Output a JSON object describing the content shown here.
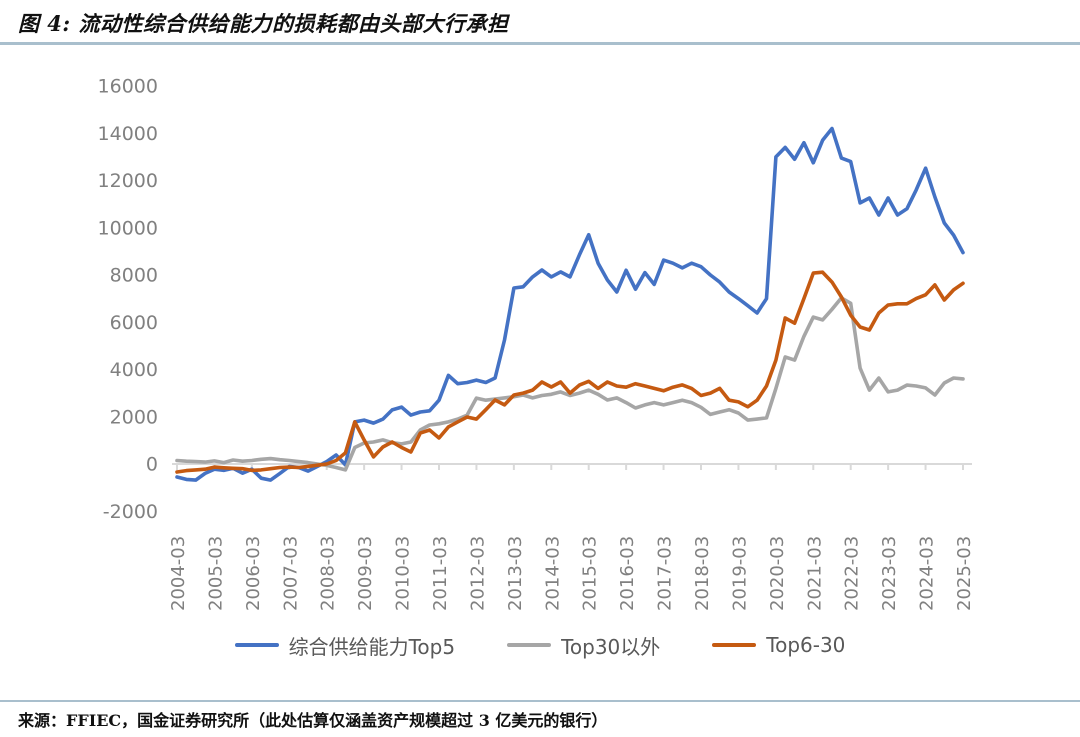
{
  "header": {
    "title": "图 4: 流动性综合供给能力的损耗都由头部大行承担"
  },
  "footer": {
    "source": "来源：FFIEC，国金证券研究所（此处估算仅涵盖资产规模超过 3 亿美元的银行）"
  },
  "colors": {
    "divider": "#a9bfcd",
    "axis_line": "#d9d9d9",
    "axis_label": "#808080",
    "legend_text": "#595959",
    "series_top5": "#4472c4",
    "series_top30plus": "#a6a6a6",
    "series_top6_30": "#c55a11"
  },
  "chart_data": {
    "type": "line",
    "title": "",
    "xlabel": "",
    "ylabel": "",
    "ylim": [
      -2000,
      16000
    ],
    "y_ticks": [
      16000,
      14000,
      12000,
      10000,
      8000,
      6000,
      4000,
      2000,
      0,
      -2000
    ],
    "x_tick_labels": [
      "2004-03",
      "2005-03",
      "2006-03",
      "2007-03",
      "2008-03",
      "2009-03",
      "2010-03",
      "2011-03",
      "2012-03",
      "2013-03",
      "2014-03",
      "2015-03",
      "2016-03",
      "2017-03",
      "2018-03",
      "2019-03",
      "2020-03",
      "2021-03",
      "2022-03",
      "2023-03",
      "2024-03",
      "2025-03"
    ],
    "grid": "zero-baseline-only",
    "legend_position": "bottom",
    "x": [
      "2004-03",
      "2004-06",
      "2004-09",
      "2004-12",
      "2005-03",
      "2005-06",
      "2005-09",
      "2005-12",
      "2006-03",
      "2006-06",
      "2006-09",
      "2006-12",
      "2007-03",
      "2007-06",
      "2007-09",
      "2007-12",
      "2008-03",
      "2008-06",
      "2008-09",
      "2008-12",
      "2009-03",
      "2009-06",
      "2009-09",
      "2009-12",
      "2010-03",
      "2010-06",
      "2010-09",
      "2010-12",
      "2011-03",
      "2011-06",
      "2011-09",
      "2011-12",
      "2012-03",
      "2012-06",
      "2012-09",
      "2012-12",
      "2013-03",
      "2013-06",
      "2013-09",
      "2013-12",
      "2014-03",
      "2014-06",
      "2014-09",
      "2014-12",
      "2015-03",
      "2015-06",
      "2015-09",
      "2015-12",
      "2016-03",
      "2016-06",
      "2016-09",
      "2016-12",
      "2017-03",
      "2017-06",
      "2017-09",
      "2017-12",
      "2018-03",
      "2018-06",
      "2018-09",
      "2018-12",
      "2019-03",
      "2019-06",
      "2019-09",
      "2019-12",
      "2020-03",
      "2020-06",
      "2020-09",
      "2020-12",
      "2021-03",
      "2021-06",
      "2021-09",
      "2021-12",
      "2022-03",
      "2022-06",
      "2022-09",
      "2022-12",
      "2023-03",
      "2023-06",
      "2023-09",
      "2023-12",
      "2024-03",
      "2024-06",
      "2024-09",
      "2024-12",
      "2025-03"
    ],
    "series": [
      {
        "name": "综合供给能力Top5",
        "color": "#4472c4",
        "values": [
          -550,
          -650,
          -680,
          -400,
          -220,
          -270,
          -180,
          -390,
          -220,
          -600,
          -680,
          -400,
          -100,
          -150,
          -300,
          -100,
          100,
          380,
          -40,
          1780,
          1860,
          1730,
          1900,
          2290,
          2410,
          2070,
          2200,
          2250,
          2700,
          3750,
          3400,
          3450,
          3550,
          3450,
          3640,
          5250,
          7450,
          7500,
          7920,
          8210,
          7920,
          8130,
          7920,
          8850,
          9700,
          8500,
          7790,
          7280,
          8200,
          7400,
          8100,
          7600,
          8630,
          8500,
          8300,
          8500,
          8350,
          8000,
          7700,
          7280,
          7000,
          6700,
          6390,
          7000,
          13000,
          13400,
          12900,
          13600,
          12750,
          13700,
          14200,
          12950,
          12800,
          11050,
          11260,
          10540,
          11260,
          10540,
          10800,
          11600,
          12520,
          11300,
          10200,
          9690,
          8950
        ]
      },
      {
        "name": "Top30以外",
        "color": "#a6a6a6",
        "values": [
          150,
          120,
          100,
          80,
          130,
          60,
          170,
          120,
          150,
          200,
          230,
          180,
          150,
          100,
          60,
          0,
          -60,
          -150,
          -250,
          700,
          890,
          930,
          1020,
          900,
          850,
          930,
          1440,
          1650,
          1700,
          1780,
          1900,
          2070,
          2790,
          2700,
          2750,
          2800,
          2850,
          2920,
          2800,
          2900,
          2950,
          3050,
          2900,
          3000,
          3130,
          2950,
          2710,
          2800,
          2600,
          2370,
          2500,
          2600,
          2500,
          2600,
          2700,
          2600,
          2400,
          2100,
          2200,
          2300,
          2160,
          1860,
          1900,
          1950,
          3200,
          4530,
          4400,
          5400,
          6220,
          6100,
          6550,
          7030,
          6800,
          4060,
          3130,
          3640,
          3050,
          3130,
          3340,
          3300,
          3220,
          2920,
          3430,
          3640,
          3600
        ]
      },
      {
        "name": "Top6-30",
        "color": "#c55a11",
        "values": [
          -340,
          -280,
          -250,
          -220,
          -130,
          -160,
          -180,
          -200,
          -270,
          -250,
          -200,
          -150,
          -130,
          -150,
          -100,
          -50,
          0,
          150,
          470,
          1780,
          1020,
          300,
          720,
          930,
          700,
          510,
          1310,
          1440,
          1100,
          1570,
          1780,
          1990,
          1900,
          2300,
          2710,
          2500,
          2920,
          3000,
          3130,
          3470,
          3260,
          3470,
          3000,
          3340,
          3500,
          3200,
          3470,
          3300,
          3250,
          3400,
          3300,
          3200,
          3100,
          3250,
          3350,
          3200,
          2900,
          3000,
          3200,
          2700,
          2630,
          2420,
          2700,
          3300,
          4400,
          6180,
          5960,
          7000,
          8080,
          8120,
          7700,
          7070,
          6300,
          5800,
          5670,
          6390,
          6730,
          6780,
          6780,
          7000,
          7160,
          7580,
          6940,
          7370,
          7650
        ]
      }
    ]
  }
}
